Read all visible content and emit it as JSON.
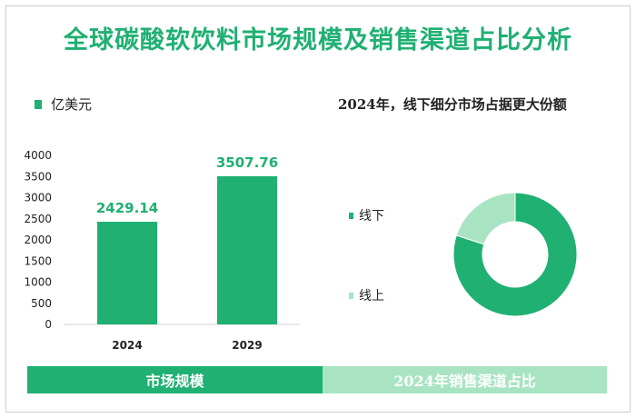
{
  "title": "全球碳酸软饮料市场规模及销售渠道占比分析",
  "colors": {
    "primary": "#1fb072",
    "light": "#a8e4c2"
  },
  "chart_data": [
    {
      "type": "bar",
      "legend": "亿美元",
      "categories": [
        "2024",
        "2029"
      ],
      "values": [
        2429.14,
        3507.76
      ],
      "value_labels": [
        "2429.14",
        "3507.76"
      ],
      "ylim": [
        0,
        4000
      ],
      "yticks": [
        0,
        500,
        1000,
        1500,
        2000,
        2500,
        3000,
        3500,
        4000
      ],
      "ytick_labels": [
        "0",
        "500",
        "1000",
        "1500",
        "2000",
        "2500",
        "3000",
        "3500",
        "4000"
      ]
    },
    {
      "type": "pie",
      "title": "2024年，线下细分市场占据更大份额",
      "slices": [
        {
          "name": "线下",
          "value": 80,
          "color": "#1fb072"
        },
        {
          "name": "线上",
          "value": 20,
          "color": "#a8e4c2"
        }
      ]
    }
  ],
  "footer": {
    "left": "市场规模",
    "right": "2024年销售渠道占比"
  }
}
